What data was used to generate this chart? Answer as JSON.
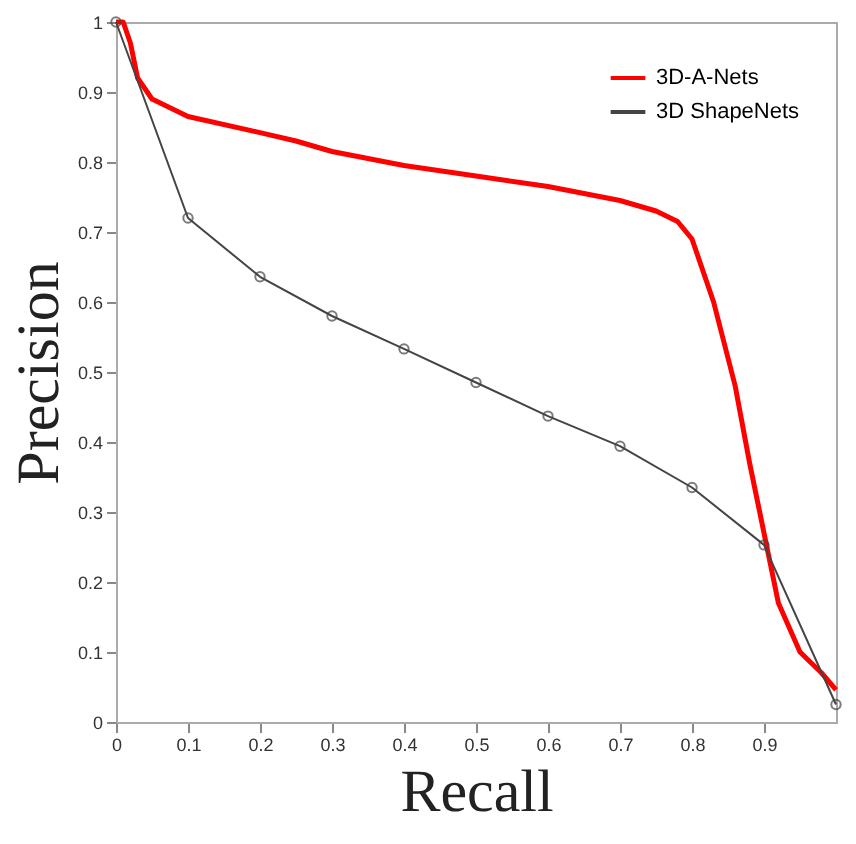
{
  "chart_data": {
    "type": "line",
    "xlabel": "Recall",
    "ylabel": "Precision",
    "xlim": [
      0,
      1
    ],
    "ylim": [
      0,
      1
    ],
    "xticks": [
      0,
      0.1,
      0.2,
      0.3,
      0.4,
      0.5,
      0.6,
      0.7,
      0.8,
      0.9
    ],
    "yticks": [
      0,
      0.1,
      0.2,
      0.3,
      0.4,
      0.5,
      0.6,
      0.7,
      0.8,
      0.9,
      1
    ],
    "grid": false,
    "legend": "top right",
    "series": [
      {
        "name": "3D-A-Nets",
        "color": "#ff0000",
        "marker": "none",
        "x": [
          0,
          0.01,
          0.02,
          0.03,
          0.05,
          0.1,
          0.2,
          0.25,
          0.3,
          0.4,
          0.5,
          0.6,
          0.7,
          0.75,
          0.78,
          0.8,
          0.83,
          0.86,
          0.88,
          0.9,
          0.92,
          0.95,
          0.98,
          1
        ],
        "values": [
          1,
          1,
          0.97,
          0.92,
          0.89,
          0.865,
          0.842,
          0.83,
          0.815,
          0.795,
          0.78,
          0.765,
          0.745,
          0.73,
          0.715,
          0.69,
          0.6,
          0.48,
          0.37,
          0.27,
          0.17,
          0.1,
          0.07,
          0.046
        ]
      },
      {
        "name": "3D ShapeNets",
        "color": "#444444",
        "marker": "circle",
        "x": [
          0,
          0.1,
          0.2,
          0.3,
          0.4,
          0.5,
          0.6,
          0.7,
          0.8,
          0.9,
          1
        ],
        "values": [
          1,
          0.72,
          0.636,
          0.58,
          0.533,
          0.485,
          0.437,
          0.394,
          0.335,
          0.253,
          0.025
        ]
      }
    ]
  }
}
